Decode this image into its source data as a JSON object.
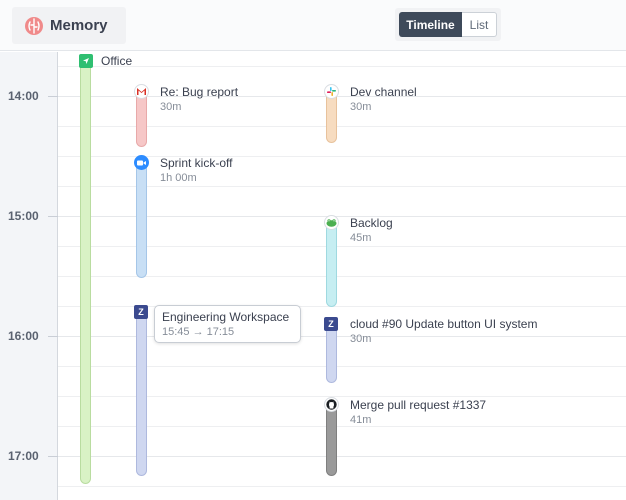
{
  "header": {
    "app_name": "Memory",
    "app_icon": "brain-icon",
    "tabs": [
      {
        "label": "Timeline",
        "active": true
      },
      {
        "label": "List",
        "active": false
      }
    ]
  },
  "timeline": {
    "hours": [
      "14:00",
      "15:00",
      "16:00",
      "17:00"
    ],
    "location": {
      "label": "Office",
      "icon": "navigation-arrow-icon",
      "color": "#d9f2c5"
    },
    "events": [
      {
        "title": "Re: Bug report",
        "duration": "30m",
        "icon": "gmail-icon",
        "color": "#f6c7c7"
      },
      {
        "title": "Sprint kick-off",
        "duration": "1h 00m",
        "icon": "zoom-icon",
        "color": "#c8dff5"
      },
      {
        "title": "Dev channel",
        "duration": "30m",
        "icon": "slack-icon",
        "color": "#f7dcc0"
      },
      {
        "title": "Backlog",
        "duration": "45m",
        "icon": "frog-icon",
        "color": "#c6eef2"
      },
      {
        "title": "cloud #90 Update button UI system",
        "duration": "30m",
        "icon": "z-app-icon",
        "color": "#cfd7f0"
      },
      {
        "title": "Merge pull request #1337",
        "duration": "41m",
        "icon": "github-icon",
        "color": "#9a9a9a"
      },
      {
        "title": "Engineering Workspace",
        "duration": "15:45 → 17:15",
        "icon": "z-app-icon",
        "color": "#cfd7f0"
      }
    ],
    "tooltip": {
      "title": "Engineering Workspace",
      "time": "15:45 → 17:15"
    }
  }
}
